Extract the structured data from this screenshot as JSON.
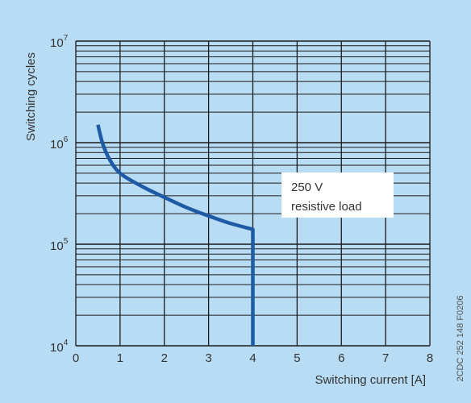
{
  "colors": {
    "background": "#b8dcf4",
    "grid": "#1a1a1a",
    "curve": "#1f5aa6",
    "annotation_box": "#ffffff"
  },
  "chart_data": {
    "type": "line",
    "title": "",
    "xlabel": "Switching current [A]",
    "ylabel": "Switching cycles",
    "xlim": [
      0,
      8
    ],
    "ylim": [
      10000,
      10000000
    ],
    "yscale": "log",
    "grid": true,
    "x_ticks": [
      "0",
      "1",
      "2",
      "3",
      "4",
      "5",
      "6",
      "7",
      "8"
    ],
    "y_ticks": [
      {
        "base": "10",
        "exp": "4"
      },
      {
        "base": "10",
        "exp": "5"
      },
      {
        "base": "10",
        "exp": "6"
      },
      {
        "base": "10",
        "exp": "7"
      }
    ],
    "series": [
      {
        "x": [
          0.5,
          0.6,
          0.75,
          1.0,
          1.5,
          2.0,
          2.5,
          3.0,
          3.5,
          4.0,
          4.0
        ],
        "y": [
          1500000,
          1000000,
          700000,
          500000,
          370000,
          290000,
          230000,
          190000,
          160000,
          140000,
          10000
        ]
      }
    ],
    "annotation": {
      "lines": [
        "250 V",
        "resistive load"
      ]
    }
  },
  "figure_code": "2CDC 252 148 F0206"
}
